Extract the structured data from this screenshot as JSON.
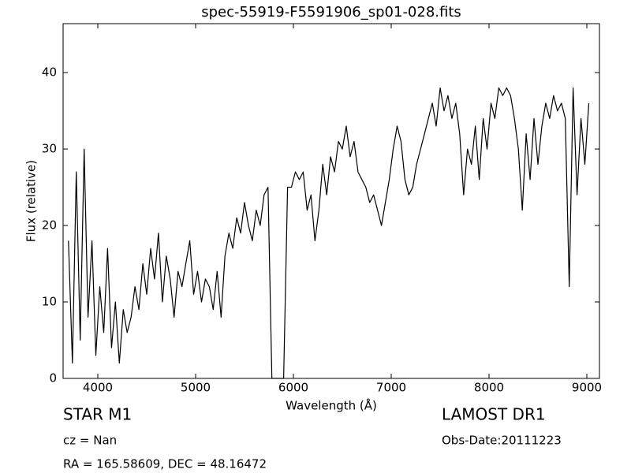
{
  "chart_data": {
    "type": "line",
    "title": "spec-55919-F5591906_sp01-028.fits",
    "x_label": "Wavelength (Å)",
    "y_label": "Flux (relative)",
    "annotations": {
      "object": "STAR   M1",
      "survey": "LAMOST DR1",
      "cz": "cz = Nan",
      "obs_date": "Obs-Date:20111223",
      "coords": "RA = 165.58609, DEC = 48.16472"
    },
    "xlim": [
      3645,
      9129
    ],
    "ylim": [
      0,
      46.4
    ],
    "xticks": [
      4000,
      5000,
      6000,
      7000,
      8000,
      9000
    ],
    "yticks": [
      0,
      10,
      20,
      30,
      40
    ],
    "x": [
      3700,
      3740,
      3780,
      3820,
      3860,
      3900,
      3940,
      3980,
      4020,
      4060,
      4100,
      4140,
      4180,
      4220,
      4260,
      4300,
      4340,
      4380,
      4420,
      4460,
      4500,
      4540,
      4580,
      4620,
      4660,
      4700,
      4740,
      4780,
      4820,
      4860,
      4900,
      4940,
      4980,
      5020,
      5060,
      5100,
      5140,
      5180,
      5220,
      5260,
      5300,
      5340,
      5380,
      5420,
      5460,
      5500,
      5540,
      5580,
      5620,
      5660,
      5700,
      5740,
      5780,
      5820,
      5860,
      5900,
      5940,
      5980,
      6020,
      6060,
      6100,
      6140,
      6180,
      6220,
      6260,
      6300,
      6340,
      6380,
      6420,
      6460,
      6500,
      6540,
      6580,
      6620,
      6660,
      6700,
      6740,
      6780,
      6820,
      6860,
      6900,
      6940,
      6980,
      7020,
      7060,
      7100,
      7140,
      7180,
      7220,
      7260,
      7300,
      7340,
      7380,
      7420,
      7460,
      7500,
      7540,
      7580,
      7620,
      7660,
      7700,
      7740,
      7780,
      7820,
      7860,
      7900,
      7940,
      7980,
      8020,
      8060,
      8100,
      8140,
      8180,
      8220,
      8260,
      8300,
      8340,
      8380,
      8420,
      8460,
      8500,
      8540,
      8580,
      8620,
      8660,
      8700,
      8740,
      8780,
      8820,
      8860,
      8900,
      8940,
      8980,
      9020
    ],
    "series": [
      {
        "color": "#000000",
        "values": [
          18,
          2,
          27,
          5,
          30,
          8,
          18,
          3,
          12,
          6,
          17,
          4,
          10,
          2,
          9,
          6,
          8,
          12,
          9,
          15,
          11,
          17,
          13,
          19,
          10,
          16,
          13,
          8,
          14,
          12,
          15,
          18,
          11,
          14,
          10,
          13,
          12,
          9,
          14,
          8,
          16,
          19,
          17,
          21,
          19,
          23,
          20,
          18,
          22,
          20,
          24,
          25,
          0,
          0,
          0,
          0,
          25,
          25,
          27,
          26,
          27,
          22,
          24,
          18,
          22,
          28,
          24,
          29,
          27,
          31,
          30,
          33,
          29,
          31,
          27,
          26,
          25,
          23,
          24,
          22,
          20,
          23,
          26,
          30,
          33,
          31,
          26,
          24,
          25,
          28,
          30,
          32,
          34,
          36,
          33,
          38,
          35,
          37,
          34,
          36,
          32,
          24,
          30,
          28,
          33,
          26,
          34,
          30,
          36,
          34,
          38,
          37,
          38,
          37,
          34,
          30,
          22,
          32,
          26,
          34,
          28,
          33,
          36,
          34,
          37,
          35,
          36,
          34,
          12,
          38,
          24,
          34,
          28,
          36
        ]
      }
    ]
  }
}
